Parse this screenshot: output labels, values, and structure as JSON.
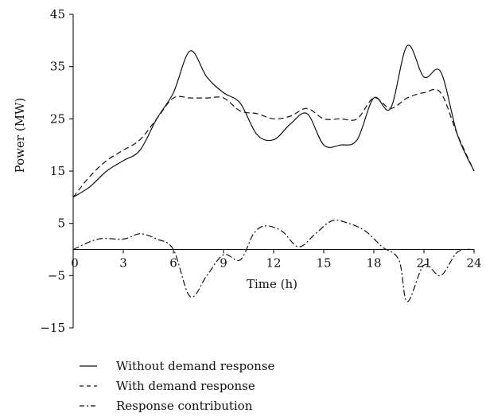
{
  "chart_data": {
    "type": "line",
    "xlabel": "Time (h)",
    "ylabel": "Power (MW)",
    "xlim": [
      0,
      24
    ],
    "ylim": [
      -15,
      45
    ],
    "x_ticks": [
      0,
      3,
      6,
      9,
      12,
      15,
      18,
      21,
      24
    ],
    "y_ticks": [
      -15,
      -5,
      5,
      15,
      25,
      35,
      45
    ],
    "x_tick_labels": [
      "0",
      "3",
      "6",
      "9",
      "12",
      "15",
      "18",
      "21",
      "24"
    ],
    "y_tick_labels": [
      "−15",
      "−5",
      "5",
      "15",
      "25",
      "35",
      "45"
    ],
    "grid": false,
    "legend_position": "bottom-left",
    "series": [
      {
        "name": "Without demand response",
        "style": "solid",
        "color": "#111111",
        "points": [
          [
            0,
            10
          ],
          [
            1,
            12
          ],
          [
            2,
            15
          ],
          [
            3,
            17
          ],
          [
            4,
            19
          ],
          [
            5,
            25
          ],
          [
            6,
            30
          ],
          [
            7,
            38
          ],
          [
            8,
            33
          ],
          [
            9,
            30
          ],
          [
            10,
            28
          ],
          [
            11,
            22
          ],
          [
            12,
            21
          ],
          [
            13,
            24
          ],
          [
            14,
            26
          ],
          [
            15,
            20
          ],
          [
            16,
            20
          ],
          [
            17,
            21
          ],
          [
            18,
            29
          ],
          [
            19,
            27
          ],
          [
            20,
            39
          ],
          [
            21,
            33
          ],
          [
            22,
            34
          ],
          [
            23,
            22
          ],
          [
            24,
            15
          ]
        ]
      },
      {
        "name": "With demand response",
        "style": "dashed",
        "color": "#111111",
        "points": [
          [
            0,
            10
          ],
          [
            1,
            14
          ],
          [
            2,
            17
          ],
          [
            3,
            19
          ],
          [
            4,
            21
          ],
          [
            5,
            25
          ],
          [
            6,
            29
          ],
          [
            7,
            29
          ],
          [
            8,
            29
          ],
          [
            9,
            29
          ],
          [
            10,
            26.5
          ],
          [
            11,
            26
          ],
          [
            12,
            25
          ],
          [
            13,
            25.5
          ],
          [
            14,
            27
          ],
          [
            15,
            25
          ],
          [
            16,
            25
          ],
          [
            17,
            25
          ],
          [
            18,
            29
          ],
          [
            19,
            27
          ],
          [
            20,
            29
          ],
          [
            21,
            30
          ],
          [
            22,
            30
          ],
          [
            23,
            22
          ],
          [
            24,
            15
          ]
        ]
      },
      {
        "name": "Response contribution",
        "style": "dash-dot",
        "color": "#111111",
        "points": [
          [
            0,
            0
          ],
          [
            1.5,
            2
          ],
          [
            3,
            2
          ],
          [
            4,
            3
          ],
          [
            5,
            2
          ],
          [
            6,
            0
          ],
          [
            7,
            -9
          ],
          [
            8,
            -5
          ],
          [
            9,
            -1
          ],
          [
            10,
            -2
          ],
          [
            10.8,
            3
          ],
          [
            11.5,
            4.5
          ],
          [
            12.5,
            3.5
          ],
          [
            13.5,
            0.5
          ],
          [
            14.5,
            3
          ],
          [
            15.5,
            5.5
          ],
          [
            16.5,
            5
          ],
          [
            17.5,
            3.5
          ],
          [
            18.5,
            0.5
          ],
          [
            19.5,
            -2
          ],
          [
            20,
            -10
          ],
          [
            21,
            -3
          ],
          [
            22,
            -5
          ],
          [
            23,
            -0.5
          ],
          [
            24,
            0
          ]
        ]
      }
    ]
  }
}
